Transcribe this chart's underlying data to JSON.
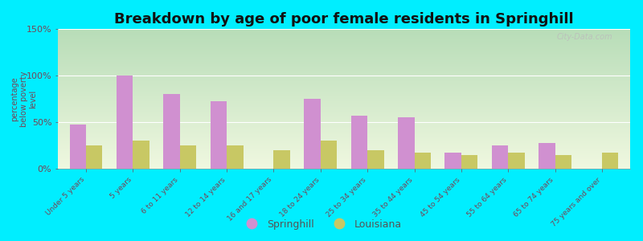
{
  "title": "Breakdown by age of poor female residents in Springhill",
  "ylabel": "percentage\nbelow poverty\nlevel",
  "categories": [
    "Under 5 years",
    "5 years",
    "6 to 11 years",
    "12 to 14 years",
    "16 and 17 years",
    "18 to 24 years",
    "25 to 34 years",
    "35 to 44 years",
    "45 to 54 years",
    "55 to 64 years",
    "65 to 74 years",
    "75 years and over"
  ],
  "springhill_values": [
    47,
    100,
    80,
    72,
    0,
    75,
    57,
    55,
    17,
    25,
    28,
    0
  ],
  "louisiana_values": [
    25,
    30,
    25,
    25,
    20,
    30,
    20,
    17,
    15,
    17,
    15,
    17
  ],
  "springhill_color": "#d090d0",
  "louisiana_color": "#c8c864",
  "outer_bg_color": "#00eeff",
  "ylim": [
    0,
    150
  ],
  "yticks": [
    0,
    50,
    100,
    150
  ],
  "ytick_labels": [
    "0%",
    "50%",
    "100%",
    "150%"
  ],
  "bar_width": 0.35,
  "title_fontsize": 13,
  "watermark": "City-Data.com",
  "legend_springhill": "Springhill",
  "legend_louisiana": "Louisiana",
  "grad_top": "#b8ddb8",
  "grad_bottom": "#f0f8e0"
}
